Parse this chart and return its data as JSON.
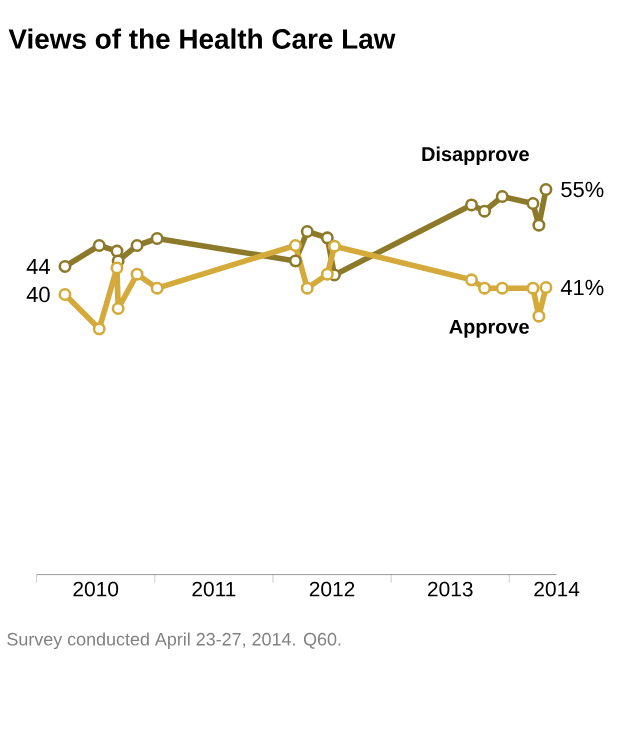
{
  "chart_data": {
    "type": "line",
    "title": "Views of the Health Care Law",
    "annotations": [
      "Survey conducted April 23-27, 2014. Q60."
    ],
    "x": [
      2010.24,
      2010.53,
      2010.68,
      2010.69,
      2010.85,
      2011.02,
      2012.19,
      2012.29,
      2012.46,
      2012.52,
      2013.68,
      2013.79,
      2013.94,
      2014.2,
      2014.25,
      2014.31
    ],
    "series": [
      {
        "name": "Disapprove",
        "color": "#8c7a2a",
        "values": [
          44,
          47,
          46.2,
          44.8,
          47,
          48,
          44.8,
          49,
          48.1,
          42.8,
          52.8,
          51.9,
          54,
          53,
          49.9,
          55
        ],
        "value_labels": [
          "44",
          null,
          null,
          null,
          null,
          null,
          null,
          null,
          null,
          null,
          null,
          null,
          null,
          null,
          null,
          "55%"
        ]
      },
      {
        "name": "Approve",
        "color": "#d4aa3a",
        "values": [
          40,
          35.1,
          43.8,
          38,
          42.9,
          40.9,
          47,
          40.9,
          42.9,
          46.9,
          42.1,
          40.9,
          40.9,
          40.9,
          36.9,
          41
        ],
        "value_labels": [
          "40",
          null,
          null,
          null,
          null,
          null,
          null,
          null,
          null,
          null,
          null,
          null,
          null,
          null,
          null,
          "41%"
        ]
      }
    ],
    "xlim": [
      2010,
      2014.4
    ],
    "xticks": [
      {
        "value": 2010,
        "label": null
      },
      {
        "value": 2011,
        "label": null
      },
      {
        "value": 2012,
        "label": null
      },
      {
        "value": 2013,
        "label": null
      },
      {
        "value": 2014,
        "label": null
      },
      {
        "value": 2010.5,
        "label": "2010"
      },
      {
        "value": 2011.5,
        "label": "2011"
      },
      {
        "value": 2012.5,
        "label": "2012"
      },
      {
        "value": 2013.5,
        "label": "2013"
      },
      {
        "value": 2014.4,
        "label": "2014"
      }
    ],
    "tick_labels": "x",
    "marker": "circle",
    "line_style": "solid",
    "grid": false,
    "legend": false
  }
}
